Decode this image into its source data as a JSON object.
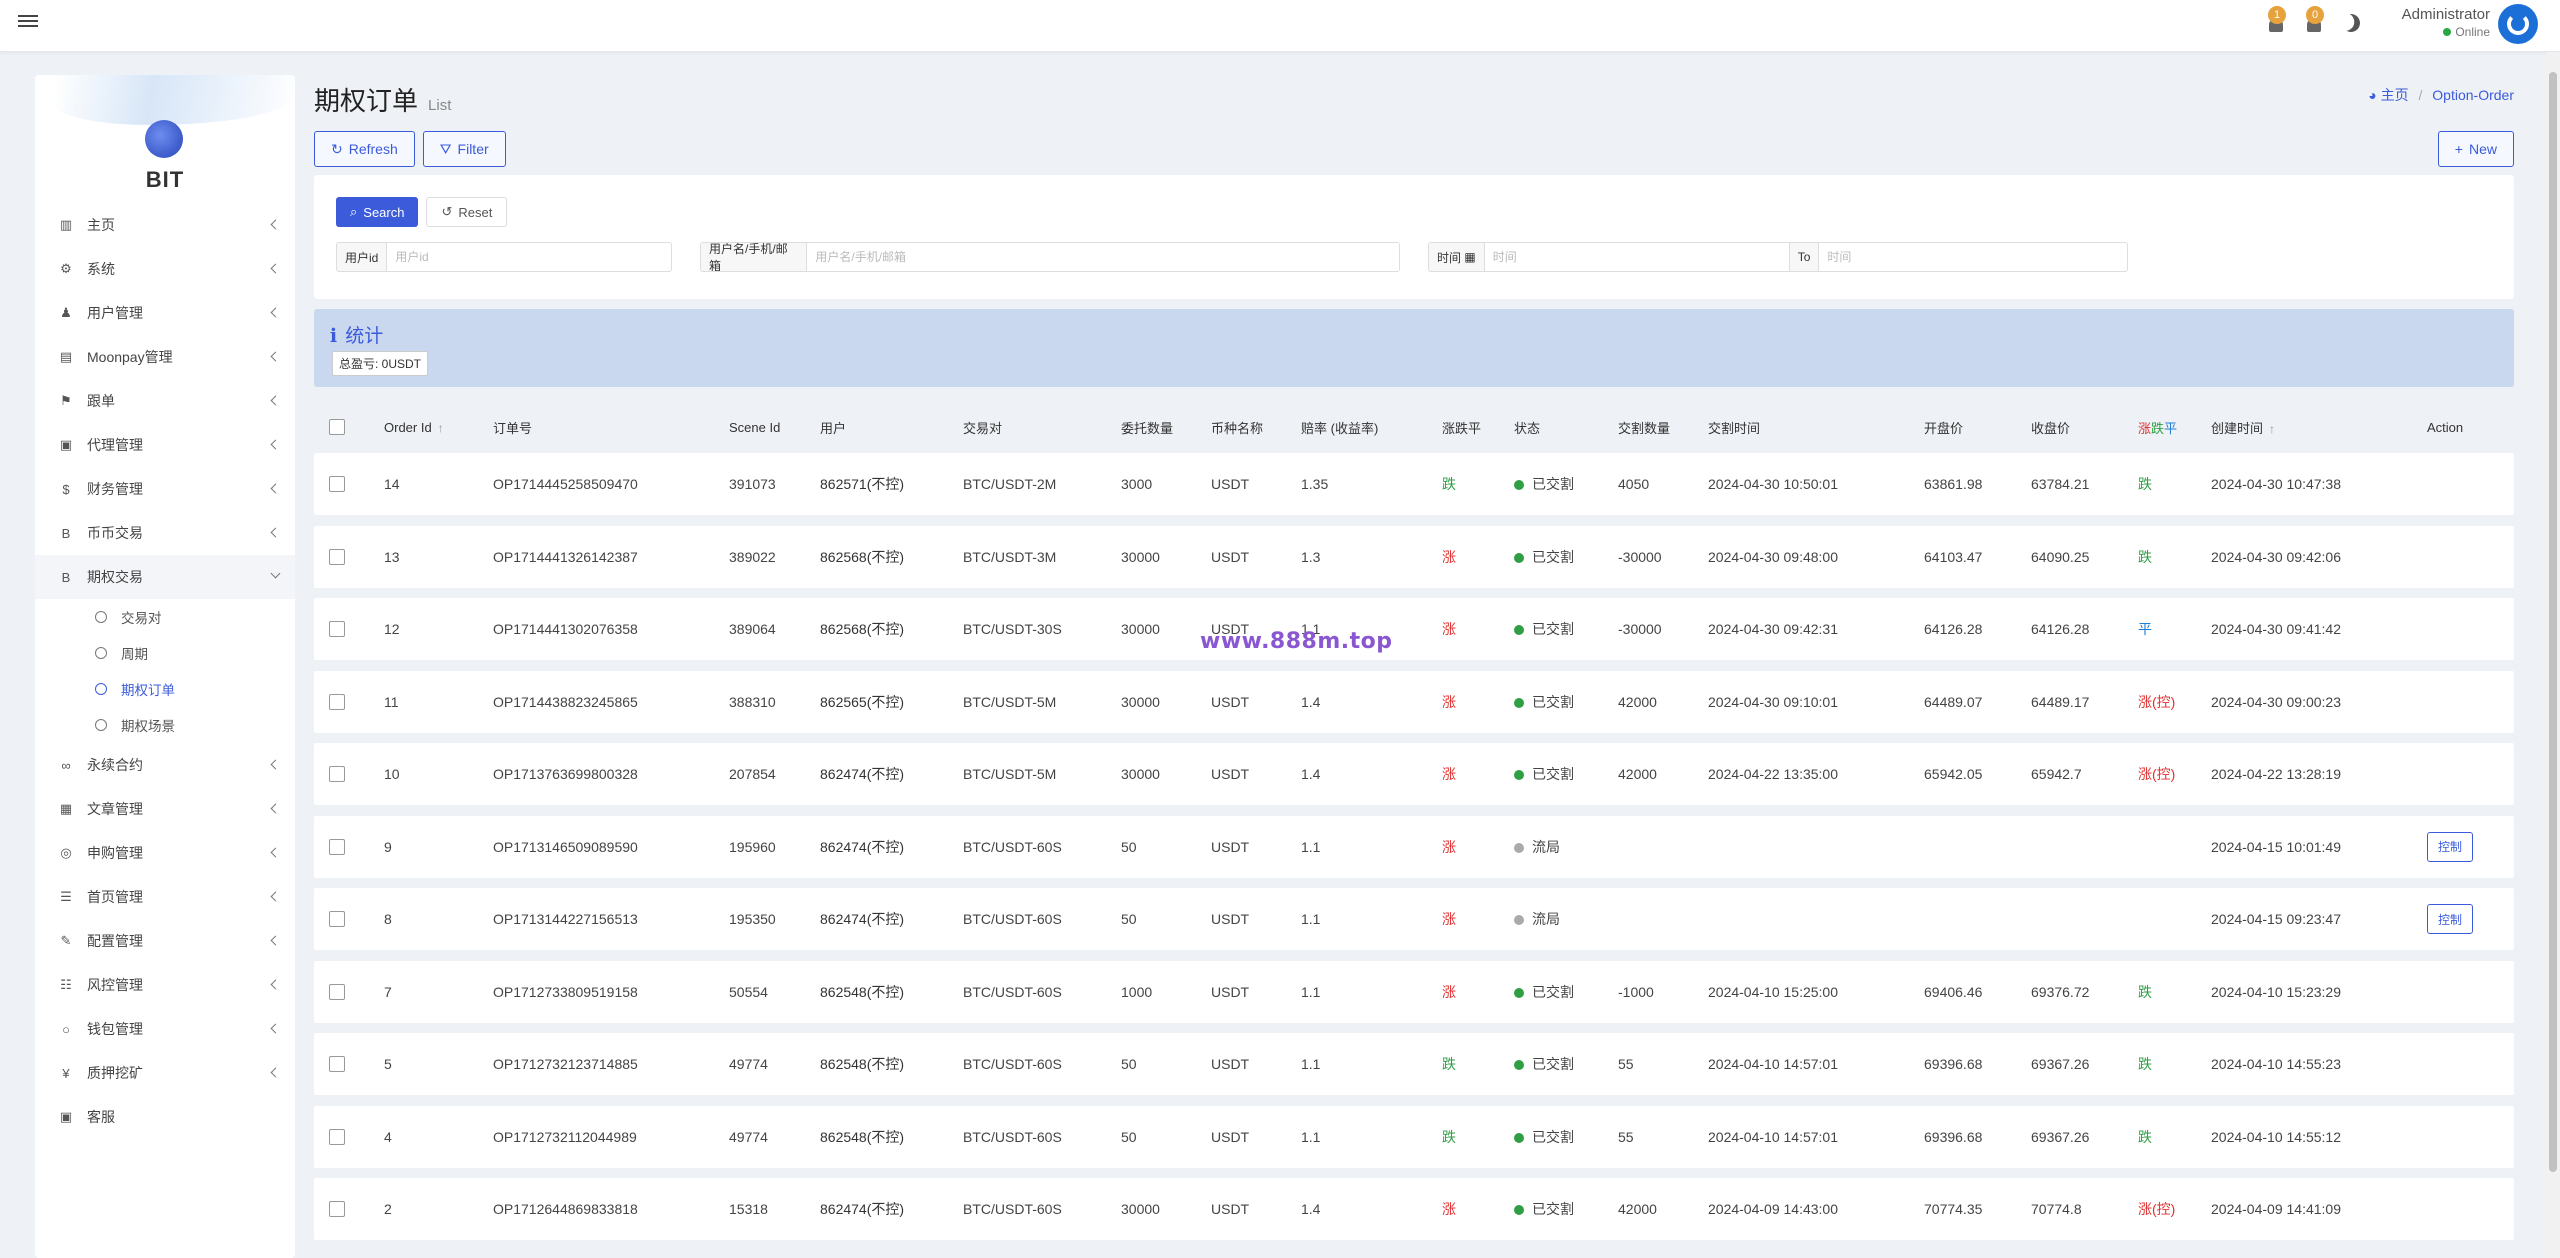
{
  "topbar": {
    "notifications": [
      {
        "icon": "bell-icon",
        "count": "1"
      },
      {
        "icon": "bell-icon",
        "count": "0"
      }
    ],
    "theme_icon": "moon-icon",
    "user_name": "Administrator",
    "user_status": "Online"
  },
  "sidebar": {
    "logo_text": "BIT",
    "items": [
      {
        "icon": "chart-icon",
        "label": "主页"
      },
      {
        "icon": "gear-icon",
        "label": "系统"
      },
      {
        "icon": "user-icon",
        "label": "用户管理"
      },
      {
        "icon": "card-icon",
        "label": "Moonpay管理"
      },
      {
        "icon": "flag-icon",
        "label": "跟单"
      },
      {
        "icon": "id-card-icon",
        "label": "代理管理"
      },
      {
        "icon": "dollar-icon",
        "label": "财务管理"
      },
      {
        "icon": "bitcoin-icon",
        "label": "币币交易"
      },
      {
        "icon": "bitcoin-icon",
        "label": "期权交易"
      }
    ],
    "submenu": [
      {
        "label": "交易对"
      },
      {
        "label": "周期"
      },
      {
        "label": "期权订单"
      },
      {
        "label": "期权场景"
      }
    ],
    "items_after": [
      {
        "icon": "link-icon",
        "label": "永续合约"
      },
      {
        "icon": "article-icon",
        "label": "文章管理"
      },
      {
        "icon": "lifebuoy-icon",
        "label": "申购管理"
      },
      {
        "icon": "list-icon",
        "label": "首页管理"
      },
      {
        "icon": "wrench-icon",
        "label": "配置管理"
      },
      {
        "icon": "list-alt-icon",
        "label": "风控管理"
      },
      {
        "icon": "circle-icon",
        "label": "钱包管理"
      },
      {
        "icon": "yen-icon",
        "label": "质押挖矿"
      },
      {
        "icon": "id-card-icon",
        "label": "客服"
      }
    ]
  },
  "page": {
    "title": "期权订单",
    "subtitle": "List",
    "breadcrumb_home": "主页",
    "breadcrumb_current": "Option-Order"
  },
  "toolbar": {
    "refresh_label": "Refresh",
    "filter_label": "Filter",
    "new_label": "New"
  },
  "search": {
    "search_label": "Search",
    "reset_label": "Reset",
    "userid_label": "用户id",
    "userid_placeholder": "用户id",
    "user_label": "用户名/手机/邮箱",
    "user_placeholder": "用户名/手机/邮箱",
    "time_label": "时间",
    "time_placeholder": "时间",
    "to_label": "To",
    "to_placeholder": "时间"
  },
  "stats": {
    "title": "统计",
    "total_profit": "总盈亏: 0USDT"
  },
  "watermark": "www.888m.top",
  "table": {
    "headers": [
      "Order Id",
      "订单号",
      "Scene Id",
      "用户",
      "交易对",
      "委托数量",
      "币种名称",
      "赔率 (收益率)",
      "涨跌平",
      "状态",
      "交割数量",
      "交割时间",
      "开盘价",
      "收盘价",
      "涨跌平",
      "创建时间",
      "Action"
    ],
    "result_header": {
      "up": "涨",
      "down": "跌",
      "flat": "平"
    },
    "rows": [
      {
        "id": "14",
        "order_no": "OP1714445258509470",
        "scene": "391073",
        "user": "862571(不控)",
        "pair": "BTC/USDT-2M",
        "qty": "3000",
        "coin": "USDT",
        "rate": "1.35",
        "dir": "跌",
        "dir_type": "down",
        "status": "已交割",
        "status_type": "green",
        "settle_qty": "4050",
        "settle_time": "2024-04-30 10:50:01",
        "open": "63861.98",
        "close": "63784.21",
        "result": "跌",
        "result_type": "down",
        "created": "2024-04-30 10:47:38",
        "action": ""
      },
      {
        "id": "13",
        "order_no": "OP1714441326142387",
        "scene": "389022",
        "user": "862568(不控)",
        "pair": "BTC/USDT-3M",
        "qty": "30000",
        "coin": "USDT",
        "rate": "1.3",
        "dir": "涨",
        "dir_type": "up",
        "status": "已交割",
        "status_type": "green",
        "settle_qty": "-30000",
        "settle_time": "2024-04-30 09:48:00",
        "open": "64103.47",
        "close": "64090.25",
        "result": "跌",
        "result_type": "down",
        "created": "2024-04-30 09:42:06",
        "action": ""
      },
      {
        "id": "12",
        "order_no": "OP1714441302076358",
        "scene": "389064",
        "user": "862568(不控)",
        "pair": "BTC/USDT-30S",
        "qty": "30000",
        "coin": "USDT",
        "rate": "1.1",
        "dir": "涨",
        "dir_type": "up",
        "status": "已交割",
        "status_type": "green",
        "settle_qty": "-30000",
        "settle_time": "2024-04-30 09:42:31",
        "open": "64126.28",
        "close": "64126.28",
        "result": "平",
        "result_type": "flat",
        "created": "2024-04-30 09:41:42",
        "action": ""
      },
      {
        "id": "11",
        "order_no": "OP1714438823245865",
        "scene": "388310",
        "user": "862565(不控)",
        "pair": "BTC/USDT-5M",
        "qty": "30000",
        "coin": "USDT",
        "rate": "1.4",
        "dir": "涨",
        "dir_type": "up",
        "status": "已交割",
        "status_type": "green",
        "settle_qty": "42000",
        "settle_time": "2024-04-30 09:10:01",
        "open": "64489.07",
        "close": "64489.17",
        "result": "涨(控)",
        "result_type": "up",
        "created": "2024-04-30 09:00:23",
        "action": ""
      },
      {
        "id": "10",
        "order_no": "OP1713763699800328",
        "scene": "207854",
        "user": "862474(不控)",
        "pair": "BTC/USDT-5M",
        "qty": "30000",
        "coin": "USDT",
        "rate": "1.4",
        "dir": "涨",
        "dir_type": "up",
        "status": "已交割",
        "status_type": "green",
        "settle_qty": "42000",
        "settle_time": "2024-04-22 13:35:00",
        "open": "65942.05",
        "close": "65942.7",
        "result": "涨(控)",
        "result_type": "up",
        "created": "2024-04-22 13:28:19",
        "action": ""
      },
      {
        "id": "9",
        "order_no": "OP1713146509089590",
        "scene": "195960",
        "user": "862474(不控)",
        "pair": "BTC/USDT-60S",
        "qty": "50",
        "coin": "USDT",
        "rate": "1.1",
        "dir": "涨",
        "dir_type": "up",
        "status": "流局",
        "status_type": "gray",
        "settle_qty": "",
        "settle_time": "",
        "open": "",
        "close": "",
        "result": "",
        "result_type": "",
        "created": "2024-04-15 10:01:49",
        "action": "控制"
      },
      {
        "id": "8",
        "order_no": "OP1713144227156513",
        "scene": "195350",
        "user": "862474(不控)",
        "pair": "BTC/USDT-60S",
        "qty": "50",
        "coin": "USDT",
        "rate": "1.1",
        "dir": "涨",
        "dir_type": "up",
        "status": "流局",
        "status_type": "gray",
        "settle_qty": "",
        "settle_time": "",
        "open": "",
        "close": "",
        "result": "",
        "result_type": "",
        "created": "2024-04-15 09:23:47",
        "action": "控制"
      },
      {
        "id": "7",
        "order_no": "OP1712733809519158",
        "scene": "50554",
        "user": "862548(不控)",
        "pair": "BTC/USDT-60S",
        "qty": "1000",
        "coin": "USDT",
        "rate": "1.1",
        "dir": "涨",
        "dir_type": "up",
        "status": "已交割",
        "status_type": "green",
        "settle_qty": "-1000",
        "settle_time": "2024-04-10 15:25:00",
        "open": "69406.46",
        "close": "69376.72",
        "result": "跌",
        "result_type": "down",
        "created": "2024-04-10 15:23:29",
        "action": ""
      },
      {
        "id": "5",
        "order_no": "OP1712732123714885",
        "scene": "49774",
        "user": "862548(不控)",
        "pair": "BTC/USDT-60S",
        "qty": "50",
        "coin": "USDT",
        "rate": "1.1",
        "dir": "跌",
        "dir_type": "down",
        "status": "已交割",
        "status_type": "green",
        "settle_qty": "55",
        "settle_time": "2024-04-10 14:57:01",
        "open": "69396.68",
        "close": "69367.26",
        "result": "跌",
        "result_type": "down",
        "created": "2024-04-10 14:55:23",
        "action": ""
      },
      {
        "id": "4",
        "order_no": "OP1712732112044989",
        "scene": "49774",
        "user": "862548(不控)",
        "pair": "BTC/USDT-60S",
        "qty": "50",
        "coin": "USDT",
        "rate": "1.1",
        "dir": "跌",
        "dir_type": "down",
        "status": "已交割",
        "status_type": "green",
        "settle_qty": "55",
        "settle_time": "2024-04-10 14:57:01",
        "open": "69396.68",
        "close": "69367.26",
        "result": "跌",
        "result_type": "down",
        "created": "2024-04-10 14:55:12",
        "action": ""
      },
      {
        "id": "2",
        "order_no": "OP1712644869833818",
        "scene": "15318",
        "user": "862474(不控)",
        "pair": "BTC/USDT-60S",
        "qty": "30000",
        "coin": "USDT",
        "rate": "1.4",
        "dir": "涨",
        "dir_type": "up",
        "status": "已交割",
        "status_type": "green",
        "settle_qty": "42000",
        "settle_time": "2024-04-09 14:43:00",
        "open": "70774.35",
        "close": "70774.8",
        "result": "涨(控)",
        "result_type": "up",
        "created": "2024-04-09 14:41:09",
        "action": ""
      }
    ]
  },
  "colors": {
    "accent": "#3b5bdb",
    "up": "#e03131",
    "down": "#2f9e44",
    "flat": "#1c7ed6",
    "stats_bg": "#c9d8ee"
  }
}
